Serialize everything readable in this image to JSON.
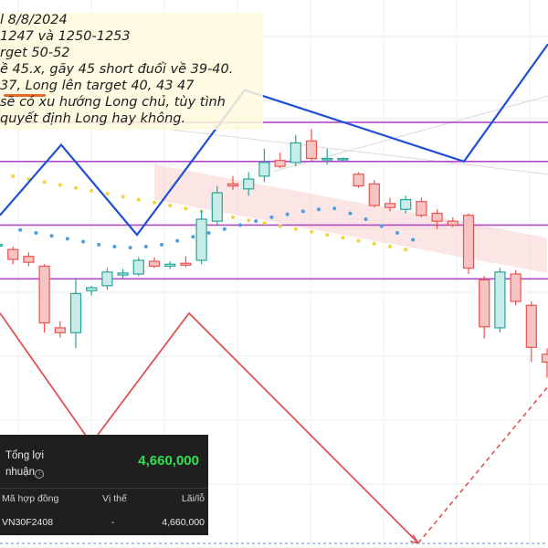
{
  "chart_data": {
    "type": "candlestick",
    "title": "",
    "xlabel": "",
    "ylabel": "",
    "ylim": [
      1206,
      1262
    ],
    "candles": [
      {
        "o": 1237.0,
        "h": 1237.5,
        "l": 1236.5,
        "c": 1237.0
      },
      {
        "o": 1236.5,
        "h": 1236.8,
        "l": 1235.0,
        "c": 1235.5
      },
      {
        "o": 1235.8,
        "h": 1236.2,
        "l": 1234.8,
        "c": 1235.2
      },
      {
        "o": 1234.8,
        "h": 1235.0,
        "l": 1228.0,
        "c": 1229.0
      },
      {
        "o": 1228.5,
        "h": 1229.2,
        "l": 1227.5,
        "c": 1228.0
      },
      {
        "o": 1228.0,
        "h": 1233.6,
        "l": 1226.4,
        "c": 1232.0
      },
      {
        "o": 1232.3,
        "h": 1232.8,
        "l": 1231.8,
        "c": 1232.6
      },
      {
        "o": 1232.8,
        "h": 1234.6,
        "l": 1232.4,
        "c": 1234.2
      },
      {
        "o": 1233.9,
        "h": 1234.5,
        "l": 1233.6,
        "c": 1234.1
      },
      {
        "o": 1234.0,
        "h": 1235.7,
        "l": 1233.8,
        "c": 1235.4
      },
      {
        "o": 1235.3,
        "h": 1235.7,
        "l": 1234.6,
        "c": 1234.8
      },
      {
        "o": 1234.8,
        "h": 1235.3,
        "l": 1234.5,
        "c": 1235.0
      },
      {
        "o": 1235.1,
        "h": 1235.8,
        "l": 1234.7,
        "c": 1234.9
      },
      {
        "o": 1235.4,
        "h": 1240.5,
        "l": 1235.0,
        "c": 1239.6
      },
      {
        "o": 1239.4,
        "h": 1243.0,
        "l": 1239.0,
        "c": 1242.3
      },
      {
        "o": 1243.2,
        "h": 1244.0,
        "l": 1242.6,
        "c": 1243.0
      },
      {
        "o": 1242.7,
        "h": 1244.4,
        "l": 1242.0,
        "c": 1243.7
      },
      {
        "o": 1244.0,
        "h": 1246.8,
        "l": 1243.4,
        "c": 1245.4
      },
      {
        "o": 1245.6,
        "h": 1246.4,
        "l": 1244.8,
        "c": 1245.0
      },
      {
        "o": 1245.4,
        "h": 1248.2,
        "l": 1245.0,
        "c": 1247.4
      },
      {
        "o": 1247.6,
        "h": 1248.8,
        "l": 1245.6,
        "c": 1245.8
      },
      {
        "o": 1245.8,
        "h": 1246.8,
        "l": 1245.2,
        "c": 1245.8
      },
      {
        "o": 1245.7,
        "h": 1245.9,
        "l": 1245.5,
        "c": 1245.8
      },
      {
        "o": 1244.2,
        "h": 1244.4,
        "l": 1242.8,
        "c": 1243.0
      },
      {
        "o": 1243.2,
        "h": 1243.6,
        "l": 1240.8,
        "c": 1241.0
      },
      {
        "o": 1241.2,
        "h": 1241.8,
        "l": 1240.4,
        "c": 1240.8
      },
      {
        "o": 1240.6,
        "h": 1242.0,
        "l": 1240.2,
        "c": 1241.6
      },
      {
        "o": 1241.4,
        "h": 1241.8,
        "l": 1239.8,
        "c": 1240.0
      },
      {
        "o": 1240.2,
        "h": 1240.6,
        "l": 1238.6,
        "c": 1239.4
      },
      {
        "o": 1239.4,
        "h": 1239.8,
        "l": 1238.8,
        "c": 1239.0
      },
      {
        "o": 1240.0,
        "h": 1240.2,
        "l": 1234.0,
        "c": 1234.6
      },
      {
        "o": 1233.4,
        "h": 1233.8,
        "l": 1227.4,
        "c": 1228.6
      },
      {
        "o": 1228.5,
        "h": 1234.6,
        "l": 1228.0,
        "c": 1234.2
      },
      {
        "o": 1234.0,
        "h": 1234.4,
        "l": 1230.8,
        "c": 1231.2
      },
      {
        "o": 1230.8,
        "h": 1231.2,
        "l": 1225.0,
        "c": 1226.5
      },
      {
        "o": 1225.8,
        "h": 1226.4,
        "l": 1223.4,
        "c": 1225.0
      }
    ],
    "parabolic_sar": {
      "above": [
        1244.0,
        1243.7,
        1243.4,
        1243.1,
        1242.8,
        1242.5,
        1242.2,
        1241.9,
        1241.6,
        1241.3,
        1241.0,
        1240.7,
        1240.4,
        1240.1,
        1239.8,
        1239.5,
        1239.2,
        1238.9,
        1238.6,
        1238.3,
        1238.0,
        1237.7,
        1237.4,
        1237.1,
        1236.8,
        1236.5
      ],
      "below": [
        1238.5,
        1238.2,
        1237.9,
        1237.6,
        1237.3,
        1237.0,
        1236.8,
        1236.7,
        1236.8,
        1237.0,
        1237.4,
        1237.8,
        1238.2,
        1238.6,
        1239.0,
        1239.4,
        1239.8,
        1240.1,
        1240.4,
        1240.6,
        1240.7,
        1240.2,
        1239.6,
        1238.9,
        1238.2,
        1237.5
      ]
    },
    "horizontal_lines": [
      1249.5,
      1245.5,
      1239.0,
      1233.5
    ],
    "blue_zigzag": [
      1240,
      1247.2,
      1238,
      1252.8,
      1245.5,
      1257.5
    ],
    "red_zigzag": [
      1230,
      1216.7,
      1230,
      1206.5,
      1222.5
    ]
  },
  "note": {
    "lines": [
      "l 8/8/2024",
      "1247 và 1250-1253",
      "rget 50-52",
      "ề 45.x, gãy 45 short đuổi về 39-40.",
      "37, Long lên target 40, 43 47",
      "sẽ có xu hướng Long chủ, tùy tình",
      "quyết định Long hay không."
    ]
  },
  "pnl_panel": {
    "total_label": "Tổng lợi nhuận",
    "total_value": "4,660,000",
    "headers": [
      "Mã hợp đồng",
      "Vị thế",
      "Lãi/lỗ"
    ],
    "row": [
      "VN30F2408",
      "-",
      "4,660,000"
    ]
  },
  "colors": {
    "up": "#26a69a",
    "down": "#ef5350",
    "zigzag_blue": "#1f4fd8",
    "zigzag_red": "#e05252",
    "level_line": "#b04ac8",
    "sar_yellow": "#f3d23a",
    "sar_blue": "#4b9fe3",
    "cloud": "#f7c5c5",
    "profit_green": "#2fe04f"
  }
}
